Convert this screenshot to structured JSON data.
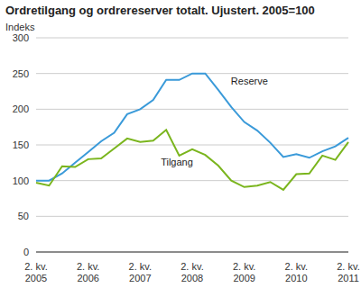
{
  "chart_data": {
    "type": "line",
    "title": "Ordretilgang og ordrereserver totalt. Ujustert. 2005=100",
    "y_label": "Indeks",
    "categories": [
      "2. kv. 2005",
      null,
      null,
      null,
      "2. kv. 2006",
      null,
      null,
      null,
      "2. kv. 2007",
      null,
      null,
      null,
      "2. kv. 2008",
      null,
      null,
      null,
      "2. kv. 2009",
      null,
      null,
      null,
      "2. kv. 2010",
      null,
      null,
      null,
      "2. kv. 2011"
    ],
    "series": [
      {
        "name": "Reserve",
        "color": "#3a9ad9",
        "values": [
          100,
          100,
          110,
          125,
          140,
          155,
          167,
          193,
          200,
          213,
          241,
          241,
          250,
          250,
          227,
          203,
          182,
          170,
          153,
          133,
          137,
          132,
          141,
          148,
          160
        ]
      },
      {
        "name": "Tilgang",
        "color": "#7ab51d",
        "values": [
          97,
          93,
          120,
          119,
          130,
          131,
          145,
          159,
          154,
          156,
          171,
          135,
          144,
          136,
          121,
          100,
          91,
          93,
          98,
          87,
          109,
          110,
          135,
          129,
          154
        ]
      }
    ],
    "ylim": [
      0,
      300
    ],
    "yticks": [
      0,
      50,
      100,
      150,
      200,
      250,
      300
    ],
    "grid": true
  }
}
